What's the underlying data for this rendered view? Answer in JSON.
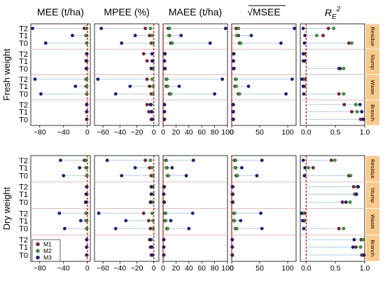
{
  "columns": [
    {
      "id": "mee",
      "title": "MEE (t/ha)",
      "xlim": [
        -95,
        5
      ],
      "ticks": [
        -80,
        -40,
        0
      ],
      "ticklabels": [
        "−80",
        "−40",
        "0"
      ],
      "ref": 0
    },
    {
      "id": "mpee",
      "title": "MPEE (%)",
      "xlim": [
        -70,
        6
      ],
      "ticks": [
        -60,
        -40,
        -20,
        0
      ],
      "ticklabels": [
        "−60",
        "−40",
        "−20",
        "0"
      ],
      "ref": 0
    },
    {
      "id": "maee",
      "title": "MAEE (t/ha)",
      "xlim": [
        0,
        100
      ],
      "ticks": [
        0,
        20,
        40,
        60,
        80,
        100
      ],
      "ticklabels": [
        "0",
        "20",
        "40",
        "60",
        "80",
        "100"
      ],
      "ref": 0
    },
    {
      "id": "rmsee",
      "title": "MSEE",
      "title_prefix": "√",
      "xlim": [
        0,
        115
      ],
      "ticks": [
        0,
        50,
        100
      ],
      "ticklabels": [
        "0",
        "50",
        "100"
      ],
      "ref": 0
    },
    {
      "id": "re2",
      "title": "R",
      "title_sub": "E",
      "title_sup": "2",
      "xlim": [
        -0.1,
        1.0
      ],
      "ticks": [
        0,
        0.5,
        1.0
      ],
      "ticklabels": [
        "0.0",
        "0.5",
        "1.0"
      ],
      "ref": 0
    }
  ],
  "row_labels": [
    "T2",
    "T1",
    "T0"
  ],
  "strips": [
    "Residue",
    "Stump",
    "Waste",
    "Branch"
  ],
  "colors": {
    "M1": "#8b1a3a",
    "M2": "#2ea02e",
    "M3": "#1a1a8c",
    "ref": "#cc0000",
    "strip": "#fbc98a",
    "band": "#e8a0a0",
    "line": "#a8c8e8"
  },
  "legend": [
    "M1",
    "M2",
    "M3"
  ],
  "chart_data": [
    {
      "type": "scatter",
      "panel": "Fresh weight",
      "values": {
        "mee": {
          "Residue": {
            "T2": [
              -5,
              -1,
              -92
            ],
            "T1": [
              -2,
              -1,
              -25
            ],
            "T0": [
              -1,
              -1,
              -70
            ]
          },
          "Stump": {
            "T2": [
              -1,
              -1,
              -1
            ],
            "T1": [
              -1,
              -1,
              -2
            ],
            "T0": [
              -1,
              -1,
              -2
            ]
          },
          "Waste": {
            "T2": [
              -2,
              -1,
              -88
            ],
            "T1": [
              -2,
              -1,
              -20
            ],
            "T0": [
              -1,
              -1,
              -78
            ]
          },
          "Branch": {
            "T2": [
              -1,
              -1,
              -1
            ],
            "T1": [
              -1,
              -1,
              -1
            ],
            "T0": [
              -1,
              -1,
              -1
            ]
          }
        },
        "mpee": {
          "Residue": {
            "T2": [
              -10,
              -4,
              -62
            ],
            "T1": [
              -5,
              -2,
              -22
            ],
            "T0": [
              -3,
              -1,
              -38
            ]
          },
          "Stump": {
            "T2": [
              -12,
              -2,
              -2
            ],
            "T1": [
              -8,
              -1,
              -2
            ],
            "T0": [
              -3,
              -1,
              -3
            ]
          },
          "Waste": {
            "T2": [
              -8,
              -2,
              -66
            ],
            "T1": [
              -5,
              -1,
              -28
            ],
            "T0": [
              -3,
              -1,
              -45
            ]
          },
          "Branch": {
            "T2": [
              -8,
              -3,
              -4
            ],
            "T1": [
              -6,
              -2,
              -3
            ],
            "T0": [
              -3,
              -1,
              -2
            ]
          }
        },
        "maee": {
          "Residue": {
            "T2": [
              8,
              10,
              97
            ],
            "T1": [
              10,
              9,
              28
            ],
            "T0": [
              12,
              14,
              73
            ]
          },
          "Stump": {
            "T2": [
              2,
              2,
              3
            ],
            "T1": [
              2,
              2,
              2
            ],
            "T0": [
              2,
              3,
              3
            ]
          },
          "Waste": {
            "T2": [
              5,
              6,
              92
            ],
            "T1": [
              5,
              7,
              25
            ],
            "T0": [
              10,
              12,
              80
            ]
          },
          "Branch": {
            "T2": [
              2,
              2,
              2
            ],
            "T1": [
              2,
              2,
              2
            ],
            "T0": [
              2,
              2,
              2
            ]
          }
        },
        "rmsee": {
          "Residue": {
            "T2": [
              8,
              12,
              112
            ],
            "T1": [
              12,
              9,
              35
            ],
            "T0": [
              14,
              16,
              88
            ]
          },
          "Stump": {
            "T2": [
              3,
              3,
              4
            ],
            "T1": [
              3,
              3,
              3
            ],
            "T0": [
              3,
              4,
              4
            ]
          },
          "Waste": {
            "T2": [
              7,
              8,
              108
            ],
            "T1": [
              6,
              8,
              30
            ],
            "T0": [
              12,
              14,
              97
            ]
          },
          "Branch": {
            "T2": [
              2,
              2,
              3
            ],
            "T1": [
              2,
              2,
              3
            ],
            "T0": [
              2,
              2,
              3
            ]
          }
        },
        "re2": {
          "Residue": {
            "T2": [
              0.38,
              0.47,
              -0.05
            ],
            "T1": [
              0.29,
              0.18,
              -0.02
            ],
            "T0": [
              0.73,
              0.78,
              -0.03
            ]
          },
          "Stump": {
            "T2": [
              -0.02,
              -0.04,
              -0.05
            ],
            "T1": [
              -0.05,
              -0.02,
              -0.03
            ],
            "T0": [
              0.56,
              0.64,
              0.58
            ]
          },
          "Waste": {
            "T2": [
              -0.02,
              -0.05,
              -0.07
            ],
            "T1": [
              -0.03,
              -0.04,
              -0.05
            ],
            "T0": [
              0.56,
              0.64,
              -0.04
            ]
          },
          "Branch": {
            "T2": [
              0.65,
              0.85,
              0.92
            ],
            "T1": [
              0.78,
              0.87,
              0.95
            ],
            "T0": [
              0.93,
              0.97,
              0.98
            ]
          }
        }
      }
    },
    {
      "type": "scatter",
      "panel": "Dry weight",
      "values": {
        "mee": {
          "Residue": {
            "T2": [
              -5,
              -2,
              -45
            ],
            "T1": [
              -2,
              -1,
              -13
            ],
            "T0": [
              -1,
              -1,
              -40
            ]
          },
          "Stump": {
            "T2": [
              -1,
              -1,
              -1
            ],
            "T1": [
              -1,
              -1,
              -2
            ],
            "T0": [
              -1,
              -1,
              -3
            ]
          },
          "Waste": {
            "T2": [
              -2,
              -1,
              -47
            ],
            "T1": [
              -2,
              -1,
              -11
            ],
            "T0": [
              -1,
              -1,
              -38
            ]
          },
          "Branch": {
            "T2": [
              -1,
              -1,
              -1
            ],
            "T1": [
              -1,
              -1,
              -1
            ],
            "T0": [
              -1,
              -1,
              -1
            ]
          }
        },
        "mpee": {
          "Residue": {
            "T2": [
              -10,
              -4,
              -55
            ],
            "T1": [
              -5,
              -2,
              -22
            ],
            "T0": [
              -3,
              -1,
              -38
            ]
          },
          "Stump": {
            "T2": [
              -3,
              -1,
              -3
            ],
            "T1": [
              -3,
              -1,
              -3
            ],
            "T0": [
              -3,
              -1,
              -4
            ]
          },
          "Waste": {
            "T2": [
              -12,
              -2,
              -65
            ],
            "T1": [
              -6,
              -1,
              -33
            ],
            "T0": [
              -4,
              -1,
              -45
            ]
          },
          "Branch": {
            "T2": [
              -5,
              -3,
              -4
            ],
            "T1": [
              -4,
              -2,
              -3
            ],
            "T0": [
              -3,
              -1,
              -2
            ]
          }
        },
        "maee": {
          "Residue": {
            "T2": [
              4,
              5,
              47
            ],
            "T1": [
              6,
              5,
              14
            ],
            "T0": [
              7,
              8,
              36
            ]
          },
          "Stump": {
            "T2": [
              1,
              1,
              2
            ],
            "T1": [
              1,
              1,
              1
            ],
            "T0": [
              1,
              1,
              2
            ]
          },
          "Waste": {
            "T2": [
              3,
              4,
              46
            ],
            "T1": [
              3,
              4,
              12
            ],
            "T0": [
              6,
              7,
              40
            ]
          },
          "Branch": {
            "T2": [
              1,
              1,
              1
            ],
            "T1": [
              1,
              1,
              1
            ],
            "T0": [
              1,
              1,
              1
            ]
          }
        },
        "rmsee": {
          "Residue": {
            "T2": [
              5,
              7,
              54
            ],
            "T1": [
              7,
              6,
              18
            ],
            "T0": [
              8,
              10,
              45
            ]
          },
          "Stump": {
            "T2": [
              1,
              1,
              2
            ],
            "T1": [
              1,
              1,
              2
            ],
            "T0": [
              1,
              1,
              2
            ]
          },
          "Waste": {
            "T2": [
              4,
              5,
              52
            ],
            "T1": [
              4,
              5,
              16
            ],
            "T0": [
              7,
              9,
              54
            ]
          },
          "Branch": {
            "T2": [
              1,
              1,
              1
            ],
            "T1": [
              1,
              1,
              1
            ],
            "T0": [
              1,
              1,
              1
            ]
          }
        },
        "re2": {
          "Residue": {
            "T2": [
              0.43,
              0.49,
              -0.05
            ],
            "T1": [
              0.12,
              0.04,
              -0.02
            ],
            "T0": [
              0.73,
              0.76,
              -0.03
            ]
          },
          "Stump": {
            "T2": [
              0.81,
              0.87,
              0.89
            ],
            "T1": [
              0.83,
              0.84,
              0.86
            ],
            "T0": [
              0.62,
              0.75,
              0.68
            ]
          },
          "Waste": {
            "T2": [
              -0.02,
              -0.05,
              -0.08
            ],
            "T1": [
              -0.03,
              -0.04,
              -0.06
            ],
            "T0": [
              0.56,
              0.64,
              -0.04
            ]
          },
          "Branch": {
            "T2": [
              0.94,
              0.97,
              0.82
            ],
            "T1": [
              0.85,
              0.93,
              0.8
            ],
            "T0": [
              0.95,
              0.98,
              0.99
            ]
          }
        }
      }
    }
  ]
}
